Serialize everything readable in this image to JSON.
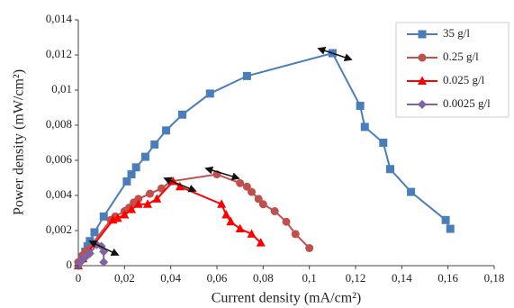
{
  "chart_data": {
    "type": "line",
    "x_label": "Current density (mA/cm²)",
    "y_label": "Power density (mW/cm²)",
    "xlim": [
      0,
      0.18
    ],
    "xticks": [
      0,
      {
        "value": 0.02,
        "label": "0,02"
      },
      {
        "value": 0.04,
        "label": "0,04"
      },
      {
        "value": 0.06,
        "label": "0,06"
      },
      {
        "value": 0.08,
        "label": "0,08"
      },
      {
        "value": 0.1,
        "label": "0,1"
      },
      {
        "value": 0.12,
        "label": "0,12"
      },
      {
        "value": 0.14,
        "label": "0,14"
      },
      {
        "value": 0.16,
        "label": "0,16"
      },
      {
        "value": 0.18,
        "label": "0,18"
      }
    ],
    "ylim": [
      0,
      0.014
    ],
    "yticks": [
      0,
      {
        "value": 0.002,
        "label": "0,002"
      },
      {
        "value": 0.004,
        "label": "0,004"
      },
      {
        "value": 0.006,
        "label": "0,006"
      },
      {
        "value": 0.008,
        "label": "0,008"
      },
      {
        "value": 0.01,
        "label": "0,01"
      },
      {
        "value": 0.012,
        "label": "0,012"
      },
      {
        "value": 0.014,
        "label": "0,014"
      }
    ],
    "legend": "upper right",
    "series": [
      {
        "name": "35 g/l",
        "color": "#4a7ebb",
        "marker": "square",
        "x": [
          0.002,
          0.003,
          0.004,
          0.005,
          0.007,
          0.011,
          0.021,
          0.023,
          0.025,
          0.029,
          0.033,
          0.038,
          0.045,
          0.057,
          0.073,
          0.11,
          0.122,
          0.124,
          0.132,
          0.135,
          0.144,
          0.159,
          0.161
        ],
        "values": [
          0.0005,
          0.0008,
          0.0011,
          0.0014,
          0.0019,
          0.0028,
          0.0048,
          0.0052,
          0.0056,
          0.0062,
          0.0069,
          0.0077,
          0.0086,
          0.0098,
          0.0108,
          0.0121,
          0.0091,
          0.0079,
          0.007,
          0.0055,
          0.0042,
          0.0026,
          0.0021
        ]
      },
      {
        "name": "0.25 g/l",
        "color": "#c0504d",
        "marker": "circle",
        "x": [
          0.0,
          0.002,
          0.004,
          0.014,
          0.016,
          0.02,
          0.022,
          0.024,
          0.026,
          0.031,
          0.036,
          0.04,
          0.06,
          0.07,
          0.073,
          0.075,
          0.078,
          0.08,
          0.085,
          0.09,
          0.094,
          0.1
        ],
        "values": [
          0.0002,
          0.0006,
          0.0009,
          0.0026,
          0.0028,
          0.0031,
          0.0033,
          0.0036,
          0.0038,
          0.0041,
          0.0044,
          0.0048,
          0.0052,
          0.0047,
          0.0045,
          0.0042,
          0.0038,
          0.0035,
          0.0031,
          0.0025,
          0.0018,
          0.001
        ]
      },
      {
        "name": "0.025 g/l",
        "color": "#ff0000",
        "marker": "triangle",
        "x": [
          0.0,
          0.002,
          0.015,
          0.017,
          0.02,
          0.023,
          0.026,
          0.03,
          0.034,
          0.041,
          0.044,
          0.062,
          0.064,
          0.066,
          0.07,
          0.075,
          0.079
        ],
        "values": [
          0.0,
          0.0004,
          0.0026,
          0.0027,
          0.0029,
          0.0032,
          0.0035,
          0.0035,
          0.0038,
          0.0048,
          0.0045,
          0.0035,
          0.0029,
          0.0025,
          0.0021,
          0.0018,
          0.0013
        ]
      },
      {
        "name": "0.0025 g/l",
        "color": "#8064a2",
        "marker": "diamond",
        "x": [
          0.0,
          0.001,
          0.002,
          0.003,
          0.004,
          0.005,
          0.008,
          0.01,
          0.011,
          0.011
        ],
        "values": [
          0.0,
          0.0002,
          0.0004,
          0.0005,
          0.0006,
          0.0007,
          0.0012,
          0.0011,
          0.0008,
          0.0002
        ]
      }
    ]
  }
}
